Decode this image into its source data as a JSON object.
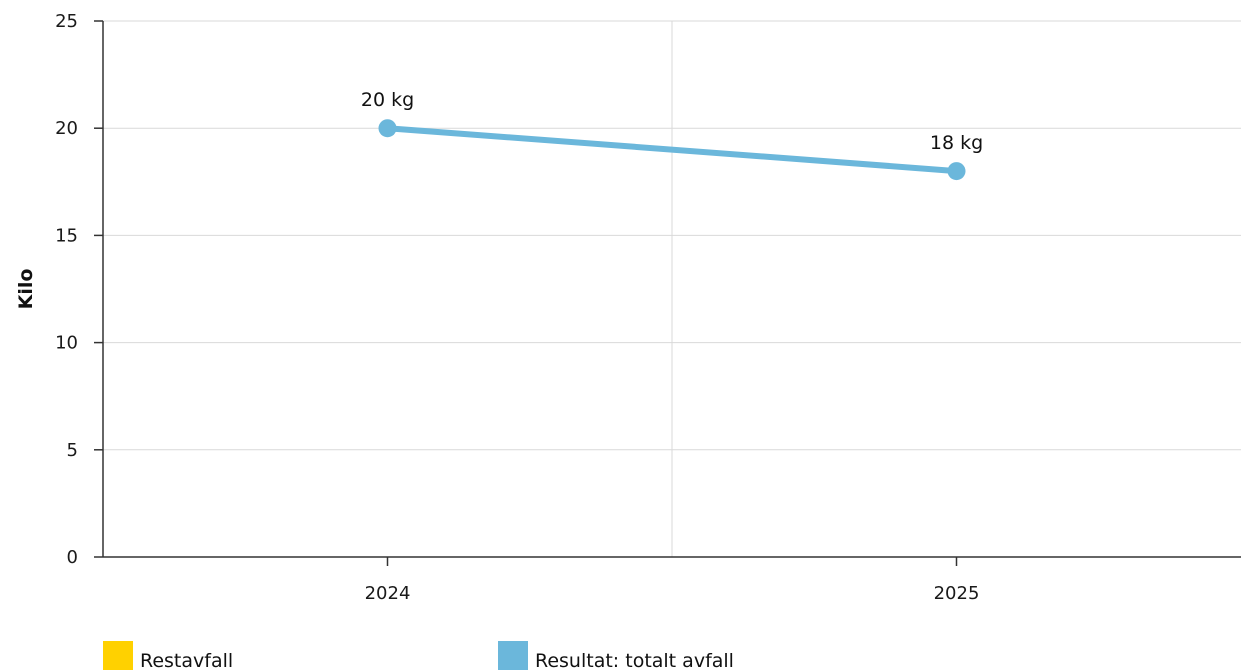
{
  "chart_data": {
    "type": "line",
    "categories": [
      "2024",
      "2025"
    ],
    "ylabel": "Kilo",
    "xlabel": "",
    "ylim": [
      0,
      25
    ],
    "yticks": [
      0,
      5,
      10,
      15,
      20,
      25
    ],
    "grid": true,
    "legend_position": "bottom",
    "legend": [
      {
        "name": "Restavfall",
        "color": "#ffd100"
      },
      {
        "name": "Resultat: totalt avfall",
        "color": "#6bb7db"
      }
    ],
    "series": [
      {
        "name": "Resultat: totalt avfall",
        "color": "#6bb7db",
        "values": [
          20,
          18
        ],
        "labels": [
          "20 kg",
          "18 kg"
        ]
      }
    ]
  }
}
